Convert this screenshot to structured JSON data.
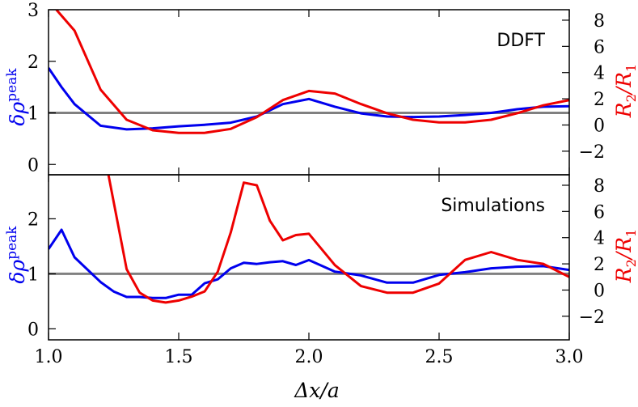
{
  "chart_data": [
    {
      "type": "line",
      "panel_label": "DDFT",
      "x": [
        1.0,
        1.05,
        1.1,
        1.2,
        1.3,
        1.4,
        1.5,
        1.6,
        1.7,
        1.8,
        1.9,
        2.0,
        2.1,
        2.2,
        2.3,
        2.4,
        2.5,
        2.6,
        2.7,
        2.8,
        2.9,
        3.0
      ],
      "series": [
        {
          "axis": "left",
          "color": "#0000ee",
          "x": [
            1.0,
            1.05,
            1.1,
            1.2,
            1.3,
            1.4,
            1.5,
            1.6,
            1.7,
            1.8,
            1.9,
            2.0,
            2.1,
            2.2,
            2.3,
            2.4,
            2.5,
            2.6,
            2.7,
            2.8,
            2.9,
            3.0
          ],
          "values": [
            1.87,
            1.5,
            1.17,
            0.75,
            0.68,
            0.7,
            0.74,
            0.77,
            0.81,
            0.93,
            1.17,
            1.27,
            1.12,
            0.99,
            0.93,
            0.92,
            0.93,
            0.96,
            1.0,
            1.07,
            1.12,
            1.13
          ]
        },
        {
          "axis": "right",
          "color": "#ee0000",
          "x": [
            1.03,
            1.1,
            1.2,
            1.3,
            1.4,
            1.5,
            1.6,
            1.7,
            1.8,
            1.9,
            2.0,
            2.1,
            2.2,
            2.3,
            2.4,
            2.5,
            2.6,
            2.7,
            2.8,
            2.9,
            3.0
          ],
          "values": [
            8.8,
            7.2,
            2.7,
            0.4,
            -0.4,
            -0.6,
            -0.6,
            -0.3,
            0.6,
            1.9,
            2.6,
            2.4,
            1.6,
            0.9,
            0.4,
            0.2,
            0.2,
            0.4,
            0.9,
            1.5,
            1.9
          ]
        }
      ],
      "xlim": [
        1.0,
        3.0
      ],
      "ylim_left": [
        -0.2,
        3.0
      ],
      "ylim_right": [
        -3.8,
        8.8
      ],
      "xticks": [
        1.0,
        1.5,
        2.0,
        2.5,
        3.0
      ],
      "yticks_left": [
        0,
        1,
        2,
        3
      ],
      "yticks_right": [
        -2,
        0,
        2,
        4,
        6,
        8
      ],
      "hline_left": 1
    },
    {
      "type": "line",
      "panel_label": "Simulations",
      "series": [
        {
          "axis": "left",
          "color": "#0000ee",
          "x": [
            1.0,
            1.05,
            1.1,
            1.2,
            1.25,
            1.3,
            1.35,
            1.4,
            1.45,
            1.5,
            1.55,
            1.6,
            1.65,
            1.7,
            1.75,
            1.8,
            1.85,
            1.9,
            1.95,
            2.0,
            2.1,
            2.2,
            2.3,
            2.4,
            2.5,
            2.6,
            2.7,
            2.8,
            2.9,
            3.0
          ],
          "values": [
            1.45,
            1.8,
            1.3,
            0.85,
            0.68,
            0.58,
            0.58,
            0.56,
            0.56,
            0.62,
            0.62,
            0.83,
            0.9,
            1.1,
            1.2,
            1.18,
            1.21,
            1.23,
            1.16,
            1.25,
            1.04,
            0.97,
            0.84,
            0.84,
            0.98,
            1.03,
            1.1,
            1.13,
            1.14,
            1.07
          ]
        },
        {
          "axis": "right",
          "color": "#ee0000",
          "x": [
            1.23,
            1.3,
            1.35,
            1.4,
            1.45,
            1.5,
            1.55,
            1.6,
            1.65,
            1.7,
            1.75,
            1.8,
            1.85,
            1.9,
            1.95,
            2.0,
            2.1,
            2.2,
            2.3,
            2.4,
            2.5,
            2.6,
            2.7,
            2.8,
            2.9,
            3.0
          ],
          "values": [
            8.8,
            1.6,
            -0.2,
            -0.8,
            -0.95,
            -0.8,
            -0.5,
            -0.1,
            1.4,
            4.4,
            8.2,
            8.0,
            5.3,
            3.8,
            4.2,
            4.3,
            1.9,
            0.3,
            -0.2,
            -0.2,
            0.5,
            2.3,
            2.9,
            2.3,
            2.0,
            1.0
          ]
        }
      ],
      "xlim": [
        1.0,
        3.0
      ],
      "ylim_left": [
        -0.2,
        2.8
      ],
      "ylim_right": [
        -3.8,
        8.8
      ],
      "xticks": [
        1.0,
        1.5,
        2.0,
        2.5,
        3.0
      ],
      "yticks_left": [
        0,
        1,
        2
      ],
      "yticks_right": [
        -2,
        0,
        2,
        4,
        6,
        8
      ],
      "hline_left": 1
    }
  ],
  "xlabel": "Δx/a",
  "ylabel_left": {
    "base": "δρ",
    "sup": "peak"
  },
  "ylabel_right": {
    "num": "R",
    "num_sub": "2",
    "den": "R",
    "den_sub": "1"
  },
  "colors": {
    "left_series": "#0000ee",
    "right_series": "#ee0000",
    "hline": "#808080"
  }
}
